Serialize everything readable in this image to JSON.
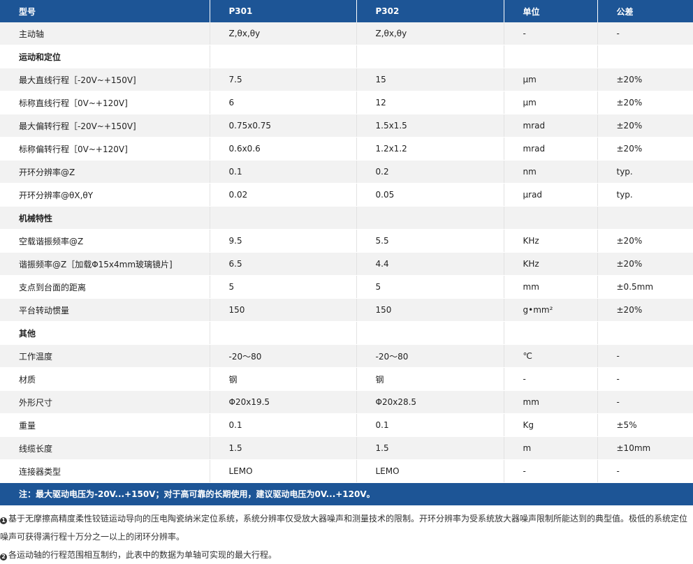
{
  "headers": [
    "型号",
    "P301",
    "P302",
    "单位",
    "公差"
  ],
  "rows": [
    {
      "cells": [
        "主动轴",
        "Z,θx,θy",
        "Z,θx,θy",
        "-",
        "-"
      ]
    },
    {
      "section": true,
      "cells": [
        "运动和定位",
        "",
        "",
        "",
        ""
      ]
    },
    {
      "cells": [
        "最大直线行程［-20V~+150V]",
        "7.5",
        "15",
        "μm",
        "±20%"
      ]
    },
    {
      "cells": [
        "标称直线行程［0V~+120V]",
        "6",
        "12",
        "μm",
        "±20%"
      ]
    },
    {
      "cells": [
        "最大偏转行程［-20V~+150V]",
        "0.75x0.75",
        "1.5x1.5",
        "mrad",
        "±20%"
      ]
    },
    {
      "cells": [
        "标称偏转行程［0V~+120V]",
        "0.6x0.6",
        "1.2x1.2",
        "mrad",
        "±20%"
      ]
    },
    {
      "cells": [
        "开环分辨率@Z",
        "0.1",
        "0.2",
        "nm",
        "typ."
      ]
    },
    {
      "cells": [
        "开环分辨率@θX,θY",
        "0.02",
        "0.05",
        "μrad",
        "typ."
      ]
    },
    {
      "section": true,
      "cells": [
        "机械特性",
        "",
        "",
        "",
        ""
      ]
    },
    {
      "cells": [
        "空载谐振频率@Z",
        "9.5",
        "5.5",
        "KHz",
        "±20%"
      ]
    },
    {
      "cells": [
        "谐振频率@Z［加载Φ15x4mm玻璃镜片]",
        "6.5",
        "4.4",
        "KHz",
        "±20%"
      ]
    },
    {
      "cells": [
        "支点到台面的距离",
        "5",
        "5",
        "mm",
        "±0.5mm"
      ]
    },
    {
      "cells": [
        "平台转动惯量",
        "150",
        "150",
        "g•mm²",
        "±20%"
      ]
    },
    {
      "section": true,
      "cells": [
        "其他",
        "",
        "",
        "",
        ""
      ]
    },
    {
      "cells": [
        "工作温度",
        "-20～80",
        "-20～80",
        "℃",
        "-"
      ]
    },
    {
      "cells": [
        "材质",
        "钢",
        "钢",
        "-",
        "-"
      ]
    },
    {
      "cells": [
        "外形尺寸",
        "Φ20x19.5",
        "Φ20x28.5",
        "mm",
        "-"
      ]
    },
    {
      "cells": [
        "重量",
        "0.1",
        "0.1",
        "Kg",
        "±5%"
      ]
    },
    {
      "cells": [
        "线缆长度",
        "1.5",
        "1.5",
        "m",
        "±10mm"
      ]
    },
    {
      "cells": [
        "连接器类型",
        "LEMO",
        "LEMO",
        "-",
        "-"
      ]
    }
  ],
  "note": "注：最大驱动电压为-20V...+150V；对于高可靠的长期使用，建议驱动电压为0V...+120V。",
  "footnotes": [
    {
      "marker": "1",
      "text": "基于无摩擦高精度柔性铰链运动导向的压电陶瓷纳米定位系统，系统分辨率仅受放大器噪声和测量技术的限制。开环分辨率为受系统放大器噪声限制所能达到的典型值。极低的系统定位噪声可获得满行程十万分之一以上的闭环分辨率。"
    },
    {
      "marker": "2",
      "text": "各运动轴的行程范围相互制约，此表中的数据为单轴可实现的最大行程。"
    }
  ],
  "colors": {
    "header_bg": "#1d5596",
    "row_alt": "#f2f2f2"
  }
}
